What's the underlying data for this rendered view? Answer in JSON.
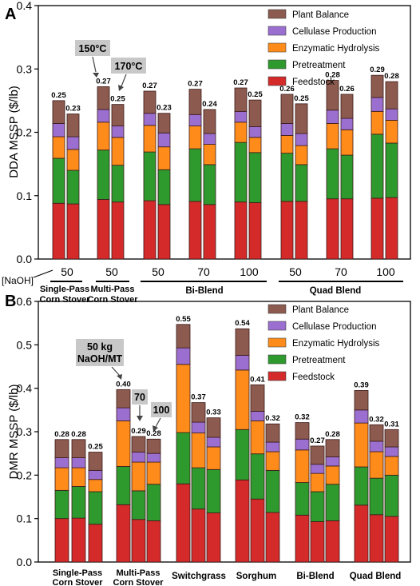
{
  "colors": {
    "feedstock": "#d42a2a",
    "pretreatment": "#2e9a2e",
    "enzymatic": "#ff8c1a",
    "cellulase": "#9a6fd0",
    "plant": "#8c5a4e",
    "callout_bg": "#c8c8c8"
  },
  "chart_data": [
    {
      "panel_label": "A",
      "type": "bar",
      "stacked": true,
      "ylabel": "DDA MSSP ($/lb)",
      "ylim": [
        0,
        0.4
      ],
      "yticks": [
        "0.0",
        "0.1",
        "0.2",
        "0.3",
        "0.4"
      ],
      "legend": [
        "Plant Balance",
        "Cellulase Production",
        "Enzymatic Hydrolysis",
        "Pretreatment",
        "Feedstock"
      ],
      "legend_position": "top-right",
      "x_axis_title": "[NaOH]",
      "bar_labels": [
        "0.25",
        "0.23",
        "0.27",
        "0.25",
        "0.27",
        "0.23",
        "0.27",
        "0.24",
        "0.27",
        "0.25",
        "0.26",
        "0.25",
        "0.28",
        "0.26",
        "0.29",
        "0.28"
      ],
      "tick_labels": [
        "50",
        "50",
        "50",
        "70",
        "100",
        "50",
        "70",
        "100"
      ],
      "group_labels": [
        "Single-Pass Corn Stover",
        "Multi-Pass Corn Stover",
        "Bi-Blend",
        "Quad Blend"
      ],
      "annotations": [
        "150°C",
        "170°C"
      ],
      "series": [
        {
          "name": "Feedstock",
          "values": [
            0.088,
            0.087,
            0.094,
            0.09,
            0.092,
            0.086,
            0.091,
            0.086,
            0.09,
            0.089,
            0.091,
            0.091,
            0.095,
            0.095,
            0.096,
            0.097
          ]
        },
        {
          "name": "Pretreatment",
          "values": [
            0.071,
            0.053,
            0.078,
            0.058,
            0.077,
            0.055,
            0.083,
            0.063,
            0.094,
            0.079,
            0.076,
            0.058,
            0.079,
            0.069,
            0.101,
            0.086
          ]
        },
        {
          "name": "Enzymatic Hydrolysis",
          "values": [
            0.034,
            0.033,
            0.044,
            0.044,
            0.042,
            0.036,
            0.036,
            0.032,
            0.032,
            0.024,
            0.028,
            0.03,
            0.04,
            0.04,
            0.036,
            0.036
          ]
        },
        {
          "name": "Cellulase Production",
          "values": [
            0.021,
            0.02,
            0.02,
            0.018,
            0.019,
            0.022,
            0.018,
            0.017,
            0.017,
            0.017,
            0.019,
            0.019,
            0.021,
            0.018,
            0.022,
            0.018
          ]
        },
        {
          "name": "Plant Balance",
          "values": [
            0.036,
            0.036,
            0.036,
            0.034,
            0.035,
            0.031,
            0.04,
            0.038,
            0.037,
            0.042,
            0.046,
            0.047,
            0.047,
            0.038,
            0.035,
            0.043
          ]
        }
      ]
    },
    {
      "panel_label": "B",
      "type": "bar",
      "stacked": true,
      "ylabel": "DMR MSSP ($/lb)",
      "ylim": [
        0,
        0.6
      ],
      "yticks": [
        "0.0",
        "0.1",
        "0.2",
        "0.3",
        "0.4",
        "0.5",
        "0.6"
      ],
      "legend": [
        "Plant Balance",
        "Cellulase Production",
        "Enzymatic Hydrolysis",
        "Pretreatment",
        "Feedstock"
      ],
      "legend_position": "top-right",
      "bar_labels": [
        "0.28",
        "0.28",
        "0.25",
        "0.40",
        "0.29",
        "0.28",
        "0.55",
        "0.37",
        "0.33",
        "0.54",
        "0.41",
        "0.32",
        "0.32",
        "0.27",
        "0.28",
        "0.39",
        "0.32",
        "0.31"
      ],
      "group_labels": [
        "Single-Pass Corn Stover",
        "Multi-Pass Corn Stover",
        "Switchgrass",
        "Sorghum",
        "Bi-Blend",
        "Quad Blend"
      ],
      "annotations": [
        "50 kg NaOH/MT",
        "70",
        "100"
      ],
      "series": [
        {
          "name": "Feedstock",
          "values": [
            0.1,
            0.101,
            0.087,
            0.132,
            0.098,
            0.095,
            0.18,
            0.122,
            0.113,
            0.189,
            0.145,
            0.114,
            0.108,
            0.093,
            0.095,
            0.131,
            0.109,
            0.105
          ]
        },
        {
          "name": "Pretreatment",
          "values": [
            0.065,
            0.073,
            0.075,
            0.088,
            0.066,
            0.084,
            0.118,
            0.095,
            0.1,
            0.116,
            0.104,
            0.097,
            0.075,
            0.069,
            0.084,
            0.088,
            0.084,
            0.095
          ]
        },
        {
          "name": "Enzymatic Hydrolysis",
          "values": [
            0.052,
            0.043,
            0.028,
            0.105,
            0.066,
            0.051,
            0.157,
            0.08,
            0.052,
            0.137,
            0.076,
            0.043,
            0.075,
            0.042,
            0.042,
            0.101,
            0.061,
            0.043
          ]
        },
        {
          "name": "Cellulase Production",
          "values": [
            0.023,
            0.023,
            0.021,
            0.03,
            0.023,
            0.02,
            0.038,
            0.025,
            0.022,
            0.034,
            0.022,
            0.022,
            0.025,
            0.021,
            0.021,
            0.03,
            0.024,
            0.022
          ]
        },
        {
          "name": "Plant Balance",
          "values": [
            0.042,
            0.042,
            0.042,
            0.042,
            0.036,
            0.033,
            0.054,
            0.045,
            0.045,
            0.061,
            0.061,
            0.042,
            0.038,
            0.042,
            0.04,
            0.045,
            0.038,
            0.04
          ]
        }
      ]
    }
  ]
}
